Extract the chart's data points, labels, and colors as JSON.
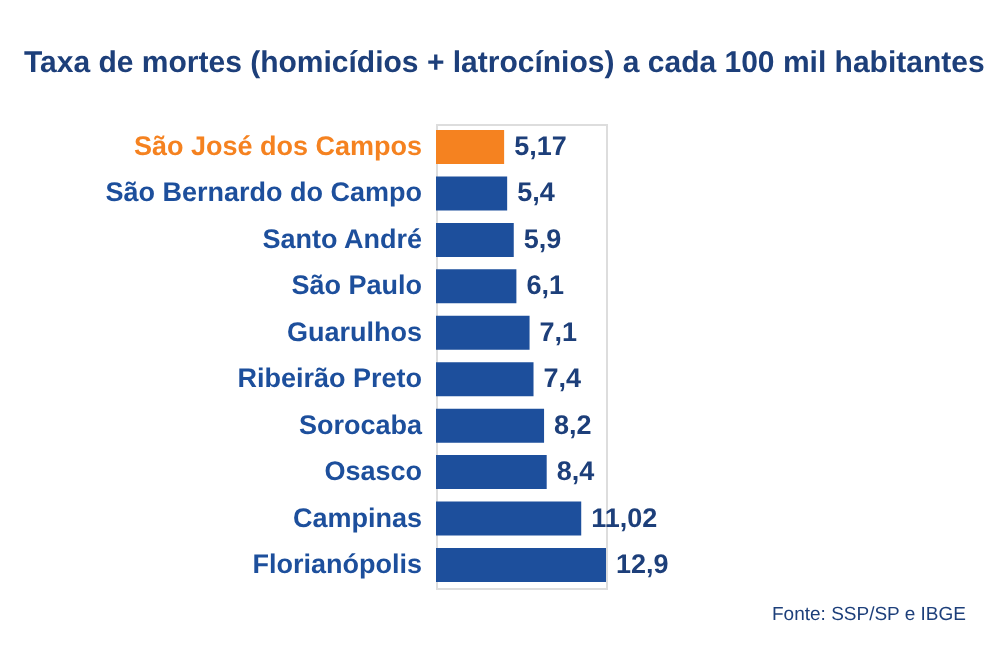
{
  "chart_data": {
    "type": "bar",
    "orientation": "horizontal",
    "title": "Taxa de mortes (homicídios + latrocínios) a cada 100 mil habitantes",
    "categories": [
      "São José dos Campos",
      "São Bernardo do Campo",
      "Santo André",
      "São Paulo",
      "Guarulhos",
      "Ribeirão Preto",
      "Sorocaba",
      "Osasco",
      "Campinas",
      "Florianópolis"
    ],
    "values": [
      5.17,
      5.4,
      5.9,
      6.1,
      7.1,
      7.4,
      8.2,
      8.4,
      11.02,
      12.9
    ],
    "colors": [
      "#f58220",
      "#1d4f9c",
      "#1d4f9c",
      "#1d4f9c",
      "#1d4f9c",
      "#1d4f9c",
      "#1d4f9c",
      "#1d4f9c",
      "#1d4f9c",
      "#1d4f9c"
    ],
    "value_labels": [
      "5,17",
      "5,4",
      "5,9",
      "6,1",
      "7,1",
      "7,4",
      "8,2",
      "8,4",
      "11,02",
      "12,9"
    ],
    "annotations": [
      "Fonte: SSP/SP e IBGE"
    ]
  }
}
